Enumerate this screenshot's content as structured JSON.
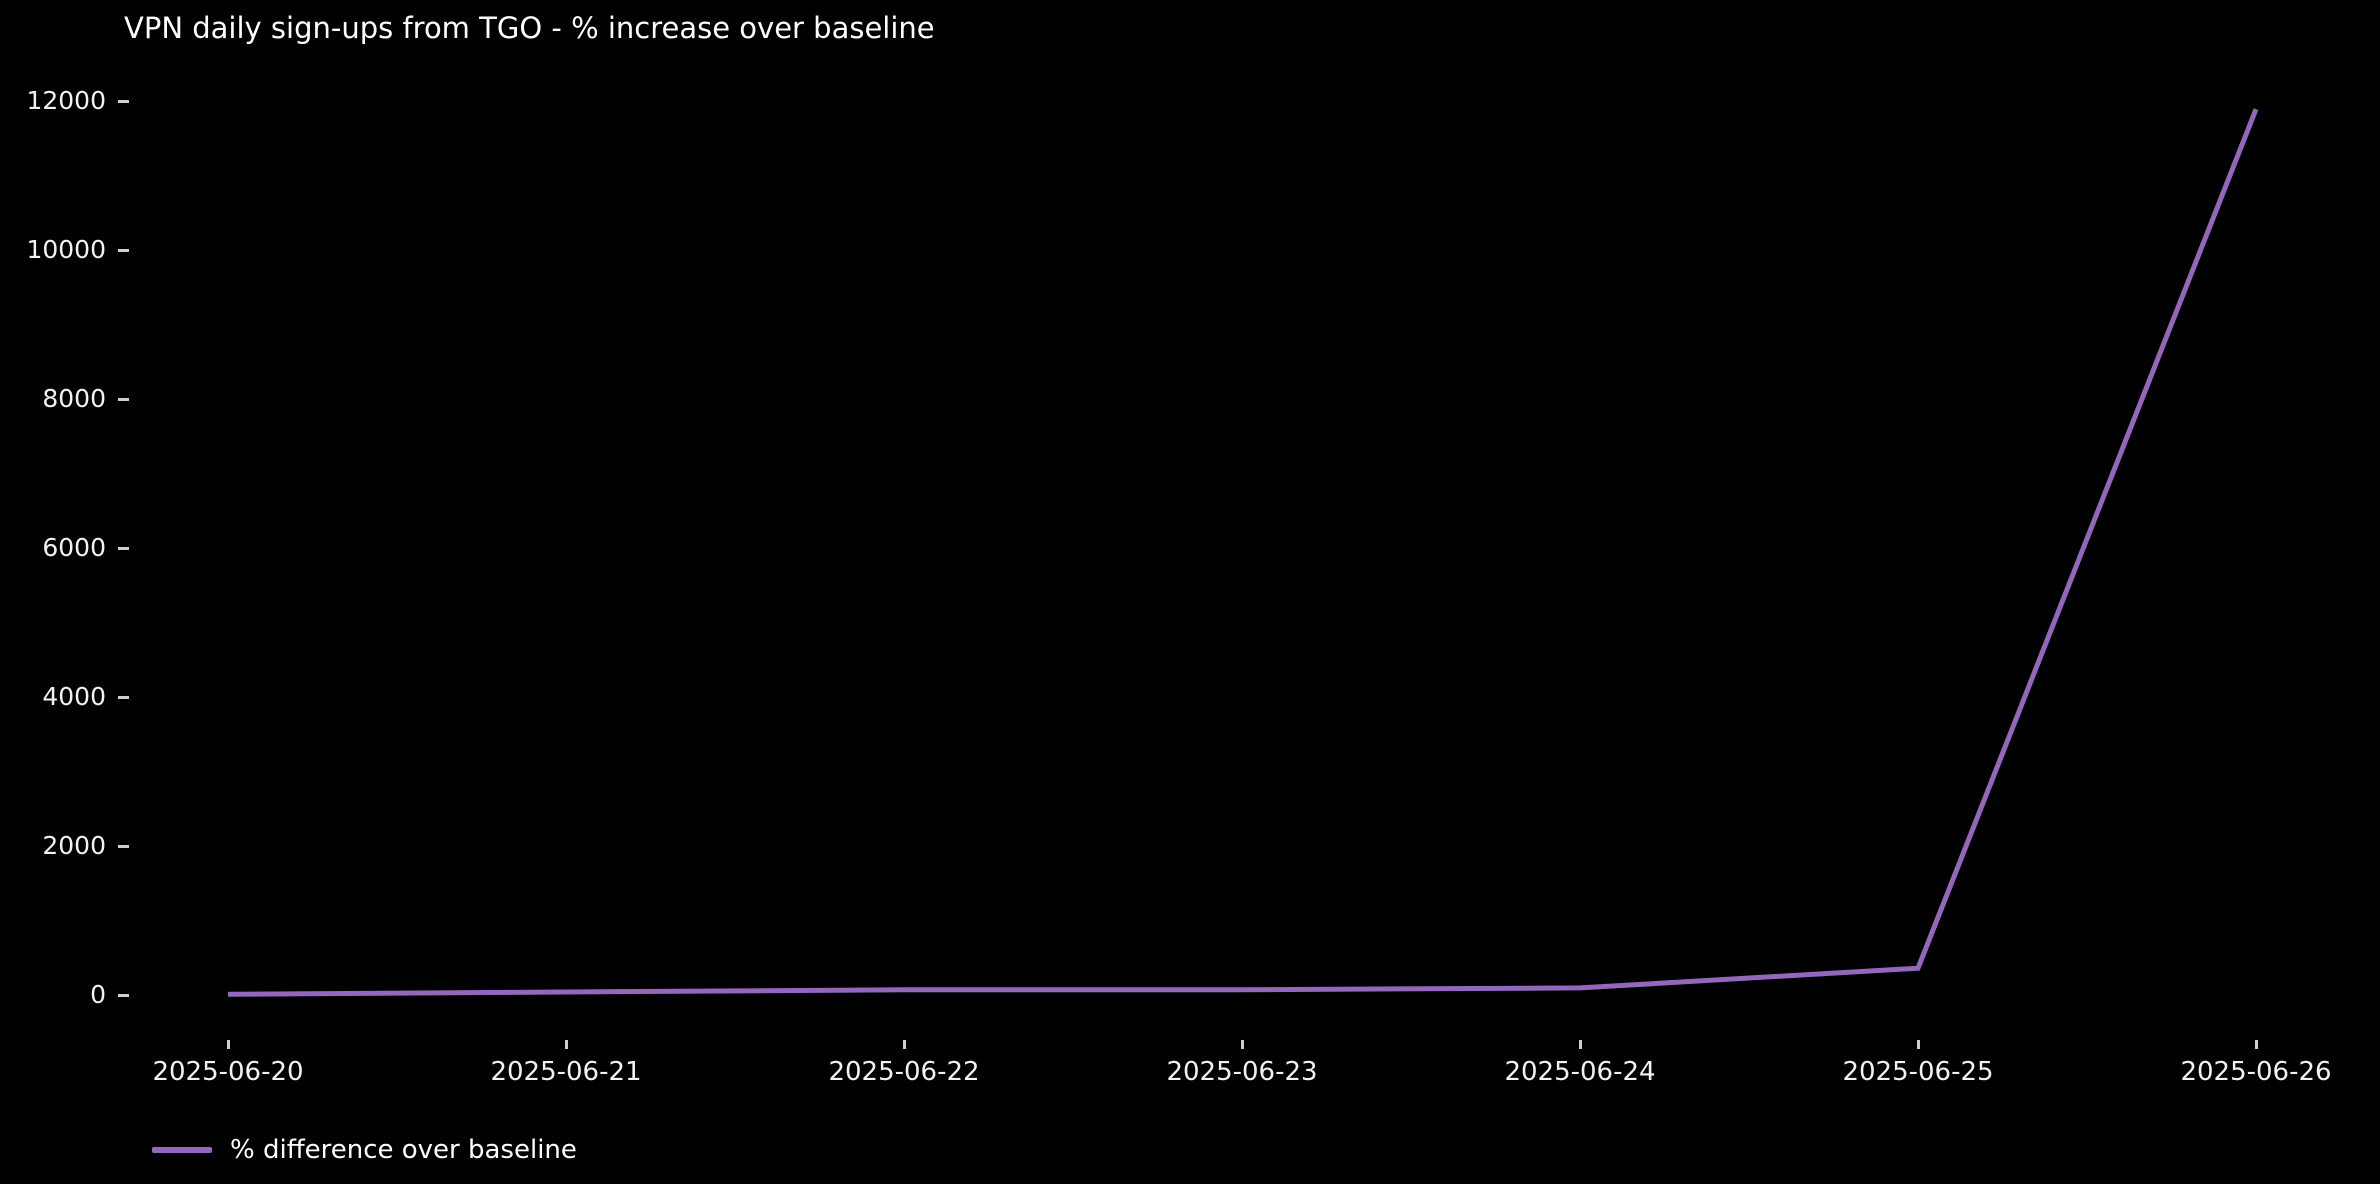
{
  "title": "VPN daily sign-ups from TGO - % increase over baseline",
  "legend": {
    "label": "% difference over baseline"
  },
  "colors": {
    "background": "#000000",
    "text": "#ffffff",
    "tick": "#cfcfcf",
    "line": "#9467bd"
  },
  "chart_data": {
    "type": "line",
    "title": "VPN daily sign-ups from TGO - % increase over baseline",
    "categories": [
      "2025-06-20",
      "2025-06-21",
      "2025-06-22",
      "2025-06-23",
      "2025-06-24",
      "2025-06-25",
      "2025-06-26"
    ],
    "series": [
      {
        "name": "% difference over baseline",
        "color": "#9467bd",
        "values": [
          10,
          40,
          70,
          70,
          95,
          360,
          11890
        ]
      }
    ],
    "xlabel": "",
    "ylabel": "",
    "yticks": [
      0,
      2000,
      4000,
      6000,
      8000,
      10000,
      12000
    ],
    "ylim": [
      0,
      12000
    ],
    "grid": false,
    "legend_position": "bottom-left",
    "background": "dark"
  }
}
